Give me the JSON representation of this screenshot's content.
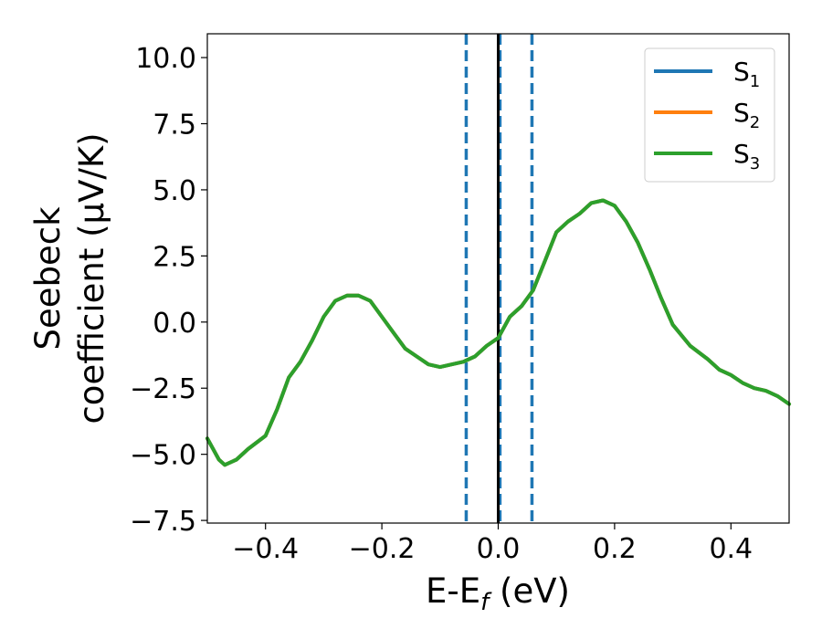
{
  "chart_data": {
    "type": "line",
    "xlabel": "E-E",
    "xlabel_sub": "f",
    "xlabel_unit": " (eV)",
    "ylabel_line1": "Seebeck",
    "ylabel_line2": "coefficient  (μV/K)",
    "xlim": [
      -0.5,
      0.5
    ],
    "ylim": [
      -7.6,
      10.9
    ],
    "xticks": [
      -0.4,
      -0.2,
      0.0,
      0.2,
      0.4
    ],
    "xtick_labels": [
      "−0.4",
      "−0.2",
      "0.0",
      "0.2",
      "0.4"
    ],
    "yticks": [
      -7.5,
      -5.0,
      -2.5,
      0.0,
      2.5,
      5.0,
      7.5,
      10.0
    ],
    "ytick_labels": [
      "−7.5",
      "−5.0",
      "−2.5",
      "0.0",
      "2.5",
      "5.0",
      "7.5",
      "10.0"
    ],
    "grid": false,
    "legend_position": "top-right",
    "series": [
      {
        "name": "S",
        "subscript": "1",
        "color": "#1f77b4",
        "x": [
          -0.5,
          -0.48,
          -0.47,
          -0.45,
          -0.43,
          -0.4,
          -0.38,
          -0.36,
          -0.34,
          -0.32,
          -0.3,
          -0.28,
          -0.26,
          -0.24,
          -0.22,
          -0.2,
          -0.18,
          -0.16,
          -0.14,
          -0.12,
          -0.1,
          -0.08,
          -0.06,
          -0.04,
          -0.02,
          0.0,
          0.02,
          0.04,
          0.06,
          0.08,
          0.1,
          0.12,
          0.14,
          0.16,
          0.18,
          0.2,
          0.22,
          0.24,
          0.26,
          0.28,
          0.3,
          0.33,
          0.36,
          0.38,
          0.4,
          0.42,
          0.44,
          0.46,
          0.48,
          0.5
        ],
        "y": [
          -4.4,
          -5.2,
          -5.4,
          -5.2,
          -4.8,
          -4.3,
          -3.3,
          -2.1,
          -1.5,
          -0.7,
          0.2,
          0.8,
          1.0,
          1.0,
          0.8,
          0.2,
          -0.4,
          -1.0,
          -1.3,
          -1.6,
          -1.7,
          -1.6,
          -1.5,
          -1.3,
          -0.9,
          -0.6,
          0.2,
          0.6,
          1.2,
          2.3,
          3.4,
          3.8,
          4.1,
          4.5,
          4.6,
          4.4,
          3.8,
          3.0,
          2.0,
          0.9,
          -0.1,
          -0.9,
          -1.4,
          -1.8,
          -2.0,
          -2.3,
          -2.5,
          -2.6,
          -2.8,
          -3.1
        ]
      },
      {
        "name": "S",
        "subscript": "2",
        "color": "#ff7f0e",
        "x": [
          -0.5,
          -0.48,
          -0.47,
          -0.45,
          -0.43,
          -0.4,
          -0.38,
          -0.36,
          -0.34,
          -0.32,
          -0.3,
          -0.28,
          -0.26,
          -0.24,
          -0.22,
          -0.2,
          -0.18,
          -0.16,
          -0.14,
          -0.12,
          -0.1,
          -0.08,
          -0.06,
          -0.04,
          -0.02,
          0.0,
          0.02,
          0.04,
          0.06,
          0.08,
          0.1,
          0.12,
          0.14,
          0.16,
          0.18,
          0.2,
          0.22,
          0.24,
          0.26,
          0.28,
          0.3,
          0.33,
          0.36,
          0.38,
          0.4,
          0.42,
          0.44,
          0.46,
          0.48,
          0.5
        ],
        "y": [
          -4.4,
          -5.2,
          -5.4,
          -5.2,
          -4.8,
          -4.3,
          -3.3,
          -2.1,
          -1.5,
          -0.7,
          0.2,
          0.8,
          1.0,
          1.0,
          0.8,
          0.2,
          -0.4,
          -1.0,
          -1.3,
          -1.6,
          -1.7,
          -1.6,
          -1.5,
          -1.3,
          -0.9,
          -0.6,
          0.2,
          0.6,
          1.2,
          2.3,
          3.4,
          3.8,
          4.1,
          4.5,
          4.6,
          4.4,
          3.8,
          3.0,
          2.0,
          0.9,
          -0.1,
          -0.9,
          -1.4,
          -1.8,
          -2.0,
          -2.3,
          -2.5,
          -2.6,
          -2.8,
          -3.1
        ]
      },
      {
        "name": "S",
        "subscript": "3",
        "color": "#2ca02c",
        "x": [
          -0.5,
          -0.48,
          -0.47,
          -0.45,
          -0.43,
          -0.4,
          -0.38,
          -0.36,
          -0.34,
          -0.32,
          -0.3,
          -0.28,
          -0.26,
          -0.24,
          -0.22,
          -0.2,
          -0.18,
          -0.16,
          -0.14,
          -0.12,
          -0.1,
          -0.08,
          -0.06,
          -0.04,
          -0.02,
          0.0,
          0.02,
          0.04,
          0.06,
          0.08,
          0.1,
          0.12,
          0.14,
          0.16,
          0.18,
          0.2,
          0.22,
          0.24,
          0.26,
          0.28,
          0.3,
          0.33,
          0.36,
          0.38,
          0.4,
          0.42,
          0.44,
          0.46,
          0.48,
          0.5
        ],
        "y": [
          -4.4,
          -5.2,
          -5.4,
          -5.2,
          -4.8,
          -4.3,
          -3.3,
          -2.1,
          -1.5,
          -0.7,
          0.2,
          0.8,
          1.0,
          1.0,
          0.8,
          0.2,
          -0.4,
          -1.0,
          -1.3,
          -1.6,
          -1.7,
          -1.6,
          -1.5,
          -1.3,
          -0.9,
          -0.6,
          0.2,
          0.6,
          1.2,
          2.3,
          3.4,
          3.8,
          4.1,
          4.5,
          4.6,
          4.4,
          3.8,
          3.0,
          2.0,
          0.9,
          -0.1,
          -0.9,
          -1.4,
          -1.8,
          -2.0,
          -2.3,
          -2.5,
          -2.6,
          -2.8,
          -3.1
        ]
      }
    ],
    "vertical_lines": [
      {
        "x": -0.055,
        "color": "#1f77b4",
        "style": "dashed"
      },
      {
        "x": 0.003,
        "color": "#1f77b4",
        "style": "dashed"
      },
      {
        "x": 0.058,
        "color": "#1f77b4",
        "style": "dashed"
      },
      {
        "x": 0.0,
        "color": "#000000",
        "style": "solid"
      }
    ]
  }
}
